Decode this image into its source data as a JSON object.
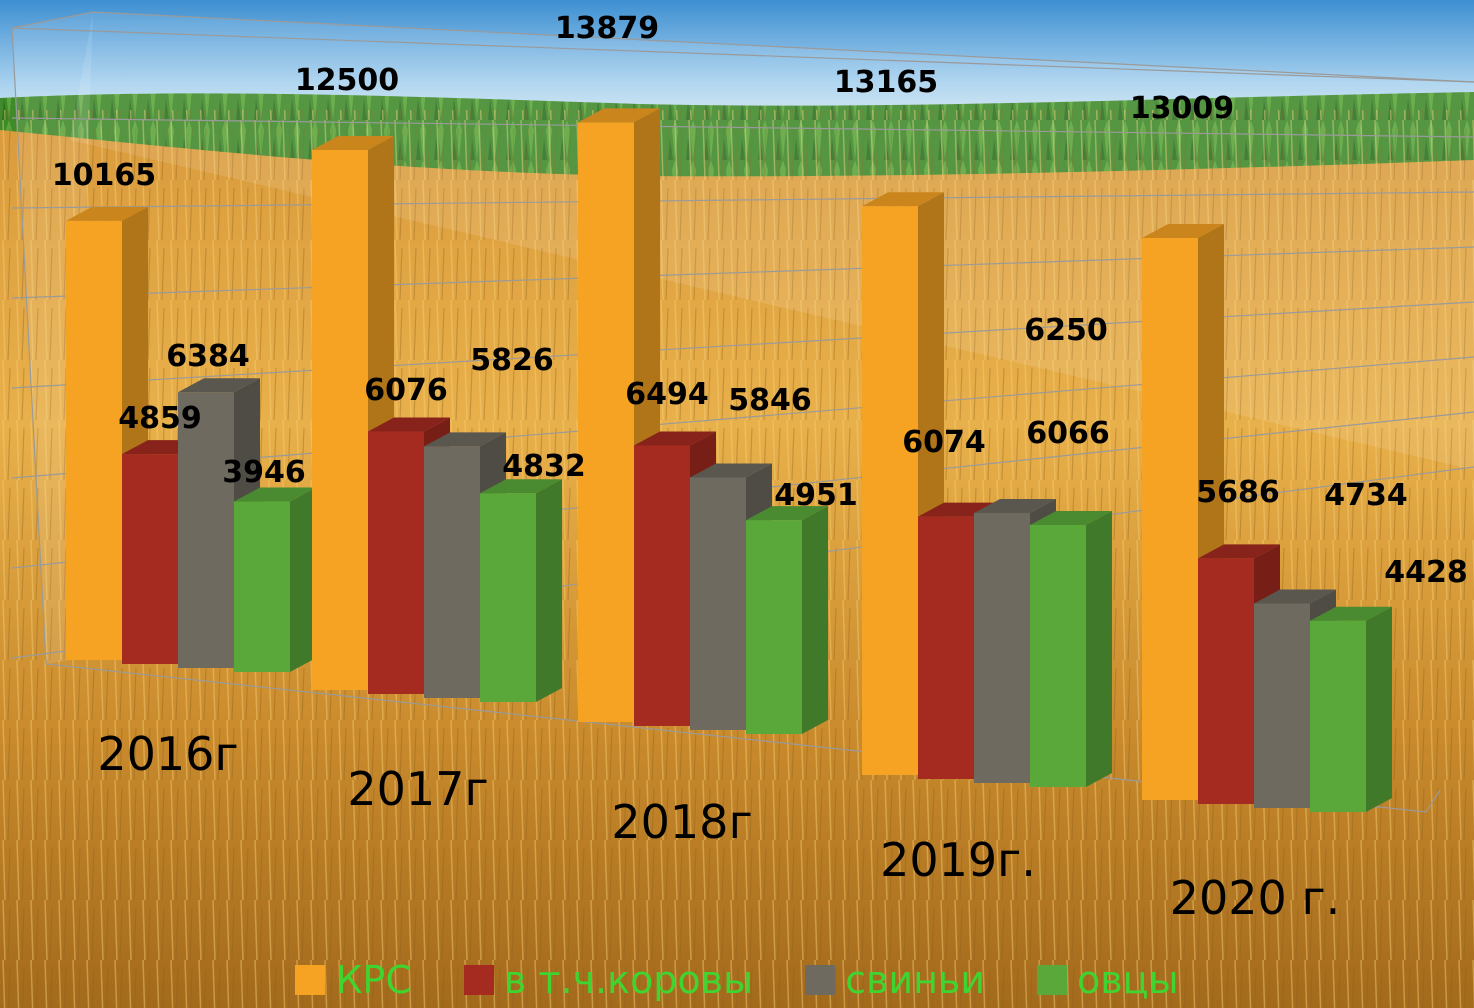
{
  "chart_data": {
    "type": "bar",
    "categories": [
      "2016г",
      "2017г",
      "2018г",
      "2019г.",
      "2020 г."
    ],
    "series": [
      {
        "name": "КРС",
        "color": "#f6a223",
        "values": [
          10165,
          12500,
          13879,
          13165,
          13009
        ]
      },
      {
        "name": "в т.ч.коровы",
        "color": "#a52b20",
        "values": [
          4859,
          6076,
          6494,
          6074,
          5686
        ]
      },
      {
        "name": "свиньи",
        "color": "#6e6a60",
        "values": [
          6384,
          5826,
          5846,
          6250,
          4734
        ]
      },
      {
        "name": "овцы",
        "color": "#5aa83a",
        "values": [
          3946,
          4832,
          4951,
          6066,
          4428
        ]
      }
    ],
    "ylim": [
      0,
      14000
    ],
    "grid": true,
    "legend_position": "bottom",
    "title": "",
    "xlabel": "",
    "ylabel": ""
  },
  "legend": {
    "items": [
      {
        "label": "КРС",
        "color": "#f6a223"
      },
      {
        "label": "в т.ч.коровы",
        "color": "#a52b20"
      },
      {
        "label": "свиньи",
        "color": "#6e6a60"
      },
      {
        "label": "овцы",
        "color": "#5aa83a"
      }
    ]
  },
  "theme": {
    "legend_text_color": "#3fd42f",
    "label_color": "#000000"
  }
}
